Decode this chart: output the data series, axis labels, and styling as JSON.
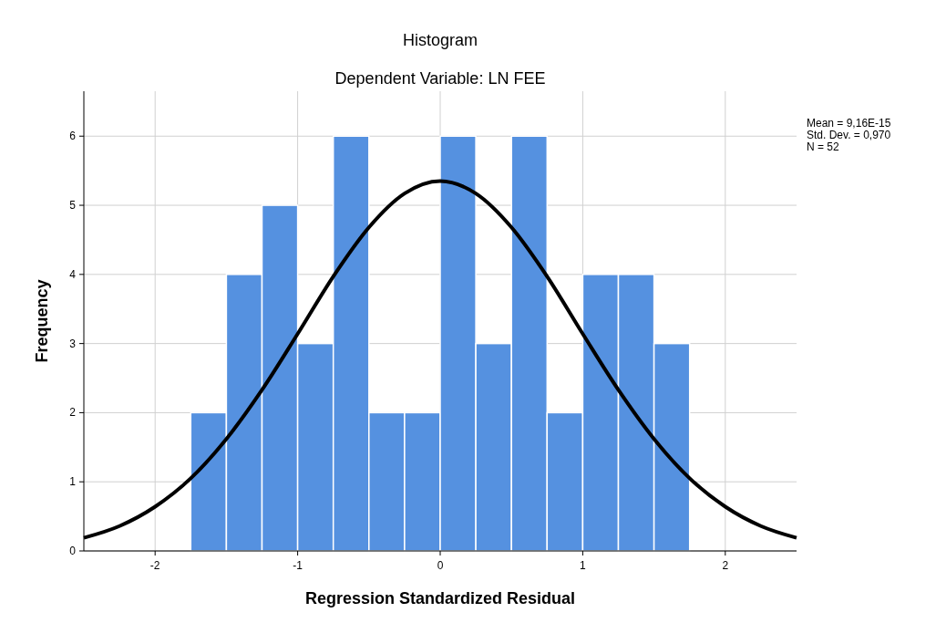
{
  "chart_data": {
    "type": "histogram",
    "title": "Histogram",
    "subtitle": "Dependent Variable: LN FEE",
    "xlabel": "Regression Standardized Residual",
    "ylabel": "Frequency",
    "annotations": [
      "Mean = 9,16E-15",
      "Std. Dev. = 0,970",
      "N = 52"
    ],
    "series": [
      {
        "bins": [
          -1.75,
          -1.5,
          -1.25,
          -1,
          -0.75,
          -0.5,
          -0.25,
          0,
          0.25,
          0.5,
          0.75,
          1,
          1.25,
          1.5,
          1.75
        ],
        "values": [
          2,
          4,
          5,
          3,
          6,
          2,
          2,
          6,
          3,
          6,
          2,
          4,
          4,
          3
        ],
        "color": "#5591e0"
      },
      {
        "type": "line",
        "color": "#000000",
        "x": [
          -2.5,
          -2.25,
          -2,
          -1.75,
          -1.5,
          -1.25,
          -1,
          -0.75,
          -0.5,
          -0.25,
          0,
          0.25,
          0.5,
          0.75,
          1,
          1.25,
          1.5,
          1.75,
          2,
          2.25,
          2.5
        ],
        "values": [
          0.19,
          0.36,
          0.64,
          1.05,
          1.62,
          2.33,
          3.14,
          3.97,
          4.68,
          5.17,
          5.35,
          5.17,
          4.68,
          3.97,
          3.14,
          2.33,
          1.62,
          1.05,
          0.64,
          0.36,
          0.19
        ]
      }
    ],
    "xlim": [
      -2.5,
      2.5
    ],
    "ylim": [
      0,
      6.65
    ],
    "xticks": [
      -2,
      -1,
      0,
      1,
      2
    ],
    "yticks": [
      0,
      1,
      2,
      3,
      4,
      5,
      6
    ],
    "grid": true,
    "marker": "none",
    "line_style": "solid"
  }
}
